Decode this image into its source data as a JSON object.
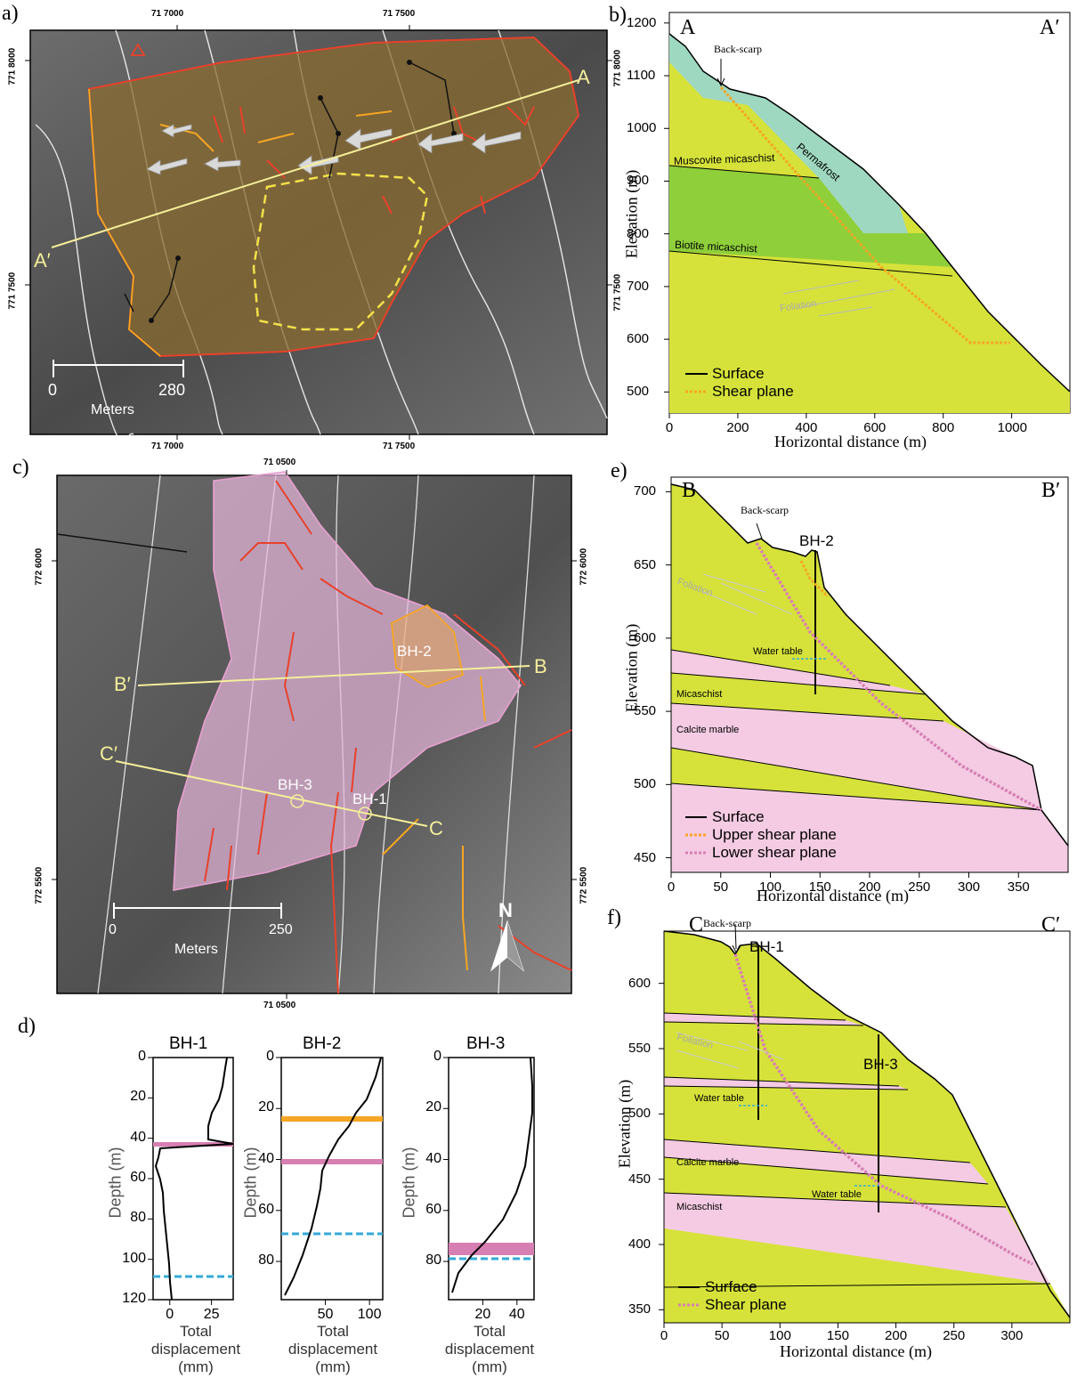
{
  "panels": {
    "a": {
      "label": "a)",
      "ticks_top": [
        "71 7000",
        "71 7500"
      ],
      "ticks_bottom": [
        "71 7000",
        "71 7500"
      ],
      "ticks_left": [
        "771 8000",
        "771 7500"
      ],
      "ticks_right": [
        "771 8000",
        "771 7500"
      ],
      "section_start": "A",
      "section_end": "A′",
      "scale": {
        "zero": "0",
        "max": "280",
        "unit": "Meters"
      }
    },
    "b": {
      "label": "b)",
      "left_tag": "A",
      "right_tag": "A′",
      "annotations": [
        "Back-scarp",
        "Permafrost",
        "Muscovite micaschist",
        "Biotite micaschist",
        "Foliation"
      ],
      "legend": [
        "Surface",
        "Shear plane"
      ],
      "xlabel": "Horizontal distance (m)",
      "ylabel": "Elevation (m)",
      "xticks": [
        "0",
        "200",
        "400",
        "600",
        "800",
        "1000"
      ],
      "yticks": [
        "1200",
        "1100",
        "1000",
        "900",
        "800",
        "700",
        "600",
        "500"
      ]
    },
    "c": {
      "label": "c)",
      "tick_top": "71 0500",
      "tick_bottom": "71 0500",
      "ticks_left": [
        "772 6000",
        "772 5500"
      ],
      "ticks_right": [
        "772 6000",
        "772 5500"
      ],
      "boreholes": [
        "BH-2",
        "BH-3",
        "BH-1"
      ],
      "sections": [
        "B",
        "B′",
        "C",
        "C′"
      ],
      "north": "N",
      "scale": {
        "zero": "0",
        "max": "250",
        "unit": "Meters"
      }
    },
    "d": {
      "label": "d)",
      "ylabel": "Depth (m)",
      "xlabel_lines": [
        "Total",
        "displacement",
        "(mm)"
      ],
      "plots": [
        {
          "title": "BH-1",
          "xticks": [
            "0",
            "25"
          ],
          "yticks": [
            "0",
            "20",
            "40",
            "60",
            "80",
            "100",
            "120"
          ]
        },
        {
          "title": "BH-2",
          "xticks": [
            "50",
            "100"
          ],
          "yticks": [
            "0",
            "20",
            "40",
            "60",
            "80"
          ]
        },
        {
          "title": "BH-3",
          "xticks": [
            "20",
            "40"
          ],
          "yticks": [
            "0",
            "20",
            "40",
            "60",
            "80"
          ]
        }
      ]
    },
    "e": {
      "label": "e)",
      "left_tag": "B",
      "right_tag": "B′",
      "annotations": [
        "Back-scarp",
        "BH-2",
        "Foliation",
        "Water table",
        "Micaschist",
        "Calcite marble"
      ],
      "legend": [
        "Surface",
        "Upper shear plane",
        "Lower shear plane"
      ],
      "xlabel": "Horizontal distance (m)",
      "ylabel": "Elevation (m)",
      "xticks": [
        "0",
        "50",
        "100",
        "150",
        "200",
        "250",
        "300",
        "350"
      ],
      "yticks": [
        "700",
        "650",
        "600",
        "550",
        "500",
        "450"
      ]
    },
    "f": {
      "label": "f)",
      "left_tag": "C",
      "right_tag": "C′",
      "annotations": [
        "Back-scarp",
        "BH-1",
        "BH-3",
        "Foliation",
        "Water table",
        "Calcite marble",
        "Water table",
        "Micaschist"
      ],
      "legend": [
        "Surface",
        "Shear plane"
      ],
      "xlabel": "Horizontal distance (m)",
      "ylabel": "Elevation (m)",
      "xticks": [
        "0",
        "50",
        "100",
        "150",
        "200",
        "250",
        "300"
      ],
      "yticks": [
        "600",
        "550",
        "500",
        "450",
        "400",
        "350"
      ]
    }
  },
  "colors": {
    "yellow_green": "#d6e23a",
    "green": "#8fcf3a",
    "teal": "#9fd8c0",
    "pink": "#f4cbe3",
    "shear_orange": "#f5a623",
    "shear_pink": "#d77fb3",
    "water_table": "#35a9d8"
  }
}
